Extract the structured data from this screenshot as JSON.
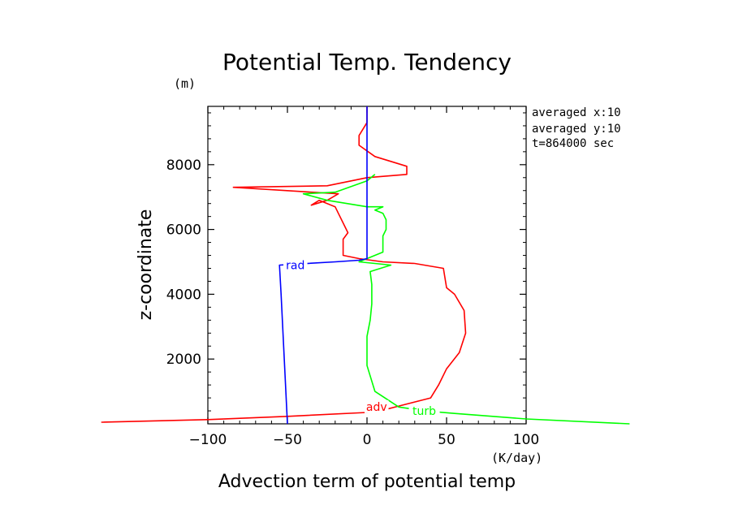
{
  "chart_data": {
    "type": "line",
    "title": "Potential Temp. Tendency",
    "xlabel": "Advection term of potential temp",
    "ylabel": "z-coordinate",
    "xunit": "(K/day)",
    "yunit": "(m)",
    "xlim": [
      -100,
      100
    ],
    "ylim": [
      0,
      9800
    ],
    "xticks": [
      -100,
      -50,
      0,
      50,
      100
    ],
    "yticks": [
      2000,
      4000,
      6000,
      8000
    ],
    "grid": false,
    "info": [
      "averaged  x:10",
      "averaged  y:10",
      "t=864000 sec"
    ],
    "colors": {
      "adv": "#ff0000",
      "turb": "#00ff00",
      "rad": "#0000ff",
      "axes": "#000000"
    },
    "series": [
      {
        "name": "adv",
        "label": "adv",
        "label_at": [
          6,
          530
        ],
        "points": [
          [
            -167,
            50
          ],
          [
            -100,
            130
          ],
          [
            -50,
            230
          ],
          [
            0,
            350
          ],
          [
            10,
            420
          ],
          [
            20,
            550
          ],
          [
            40,
            800
          ],
          [
            45,
            1200
          ],
          [
            50,
            1700
          ],
          [
            58,
            2200
          ],
          [
            62,
            2800
          ],
          [
            61,
            3500
          ],
          [
            55,
            4000
          ],
          [
            50,
            4200
          ],
          [
            48,
            4800
          ],
          [
            30,
            4950
          ],
          [
            10,
            5000
          ],
          [
            -5,
            5100
          ],
          [
            -15,
            5200
          ],
          [
            -15,
            5700
          ],
          [
            -12,
            5900
          ],
          [
            -15,
            6200
          ],
          [
            -18,
            6500
          ],
          [
            -20,
            6700
          ],
          [
            -30,
            6900
          ],
          [
            -35,
            6750
          ],
          [
            -25,
            6900
          ],
          [
            -18,
            7100
          ],
          [
            -84,
            7300
          ],
          [
            -25,
            7350
          ],
          [
            0,
            7600
          ],
          [
            25,
            7700
          ],
          [
            25,
            7950
          ],
          [
            5,
            8250
          ],
          [
            -5,
            8600
          ],
          [
            -5,
            8900
          ],
          [
            0,
            9300
          ],
          [
            0,
            9800
          ]
        ]
      },
      {
        "name": "turb",
        "label": "turb",
        "label_at": [
          36,
          400
        ],
        "points": [
          [
            165,
            0
          ],
          [
            100,
            150
          ],
          [
            55,
            320
          ],
          [
            36,
            400
          ],
          [
            20,
            520
          ],
          [
            5,
            1000
          ],
          [
            0,
            1800
          ],
          [
            0,
            2700
          ],
          [
            2,
            3200
          ],
          [
            3,
            3700
          ],
          [
            3,
            4300
          ],
          [
            2,
            4700
          ],
          [
            15,
            4900
          ],
          [
            -5,
            5000
          ],
          [
            10,
            5300
          ],
          [
            10,
            5800
          ],
          [
            12,
            6000
          ],
          [
            12,
            6300
          ],
          [
            10,
            6500
          ],
          [
            5,
            6600
          ],
          [
            10,
            6700
          ],
          [
            0,
            6700
          ],
          [
            -25,
            6900
          ],
          [
            -40,
            7100
          ],
          [
            -20,
            7150
          ],
          [
            0,
            7500
          ],
          [
            5,
            7700
          ]
        ]
      },
      {
        "name": "rad",
        "label": "rad",
        "label_at": [
          -45,
          4900
        ],
        "points": [
          [
            -50,
            0
          ],
          [
            -52,
            2000
          ],
          [
            -54,
            4000
          ],
          [
            -55,
            4900
          ],
          [
            -20,
            5000
          ],
          [
            -5,
            5050
          ],
          [
            0,
            5100
          ],
          [
            0,
            9800
          ]
        ]
      }
    ]
  }
}
